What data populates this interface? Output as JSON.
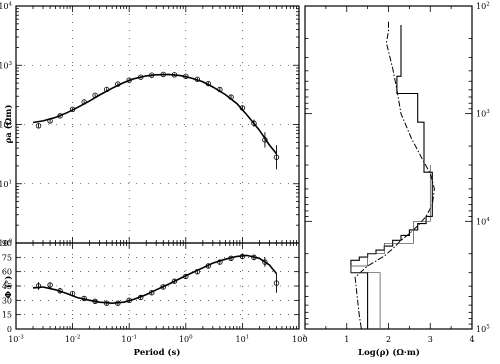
{
  "chart_data": [
    {
      "type": "scatter",
      "panel": "apparent-resistivity",
      "ylabel": "ρa (Ωm)",
      "x_scale": "log",
      "y_scale": "log",
      "xlim": [
        0.001,
        100
      ],
      "ylim": [
        1,
        10000
      ],
      "x_ticks": [
        {
          "base": "10",
          "exp": "-3"
        },
        {
          "base": "10",
          "exp": "-2"
        },
        {
          "base": "10",
          "exp": "-1"
        },
        {
          "base": "10",
          "exp": "0"
        },
        {
          "base": "10",
          "exp": "1"
        },
        {
          "base": "10",
          "exp": "2"
        }
      ],
      "y_ticks": [
        {
          "base": "10",
          "exp": "0"
        },
        {
          "base": "10",
          "exp": "1"
        },
        {
          "base": "10",
          "exp": "2"
        },
        {
          "base": "10",
          "exp": "3"
        },
        {
          "base": "10",
          "exp": "4"
        }
      ],
      "observed": {
        "x": [
          0.0025,
          0.004,
          0.006,
          0.01,
          0.016,
          0.025,
          0.04,
          0.063,
          0.1,
          0.16,
          0.25,
          0.4,
          0.63,
          1.0,
          1.6,
          2.5,
          4,
          6.3,
          10,
          16,
          25,
          40
        ],
        "y": [
          95,
          115,
          140,
          180,
          240,
          310,
          390,
          480,
          560,
          630,
          680,
          700,
          690,
          650,
          580,
          490,
          390,
          290,
          190,
          105,
          55,
          28
        ],
        "y_err_factor": [
          1.08,
          1.06,
          1.06,
          1.05,
          1.05,
          1.05,
          1.05,
          1.05,
          1.05,
          1.05,
          1.05,
          1.05,
          1.05,
          1.05,
          1.06,
          1.06,
          1.07,
          1.08,
          1.1,
          1.15,
          1.35,
          1.6
        ]
      },
      "model_response": {
        "x": [
          0.002,
          0.003,
          0.005,
          0.008,
          0.012,
          0.02,
          0.03,
          0.05,
          0.08,
          0.12,
          0.2,
          0.3,
          0.5,
          0.8,
          1.2,
          2,
          3,
          5,
          8,
          12,
          20,
          30,
          40
        ],
        "y": [
          108,
          115,
          132,
          158,
          192,
          250,
          315,
          410,
          510,
          590,
          660,
          690,
          700,
          670,
          615,
          525,
          430,
          320,
          225,
          145,
          80,
          45,
          32
        ]
      }
    },
    {
      "type": "scatter",
      "panel": "phase",
      "ylabel": "Φ (°)",
      "xlabel": "Period (s)",
      "x_scale": "log",
      "xlim": [
        0.001,
        100
      ],
      "ylim": [
        0,
        90
      ],
      "y_ticks": [
        "0",
        "15",
        "30",
        "45",
        "60",
        "75",
        "90"
      ],
      "x_ticks": [
        {
          "base": "10",
          "exp": "-3"
        },
        {
          "base": "10",
          "exp": "-2"
        },
        {
          "base": "10",
          "exp": "-1"
        },
        {
          "base": "10",
          "exp": "0"
        },
        {
          "base": "10",
          "exp": "1"
        },
        {
          "base": "10",
          "exp": "2"
        }
      ],
      "observed": {
        "x": [
          0.0025,
          0.004,
          0.006,
          0.01,
          0.016,
          0.025,
          0.04,
          0.063,
          0.1,
          0.16,
          0.25,
          0.4,
          0.63,
          1.0,
          1.6,
          2.5,
          4,
          6.3,
          10,
          16,
          25,
          40
        ],
        "y": [
          45,
          46,
          40,
          37,
          32,
          29,
          27,
          27,
          30,
          33,
          38,
          44,
          50,
          55,
          60,
          66,
          70,
          74,
          76,
          75,
          70,
          48
        ],
        "y_err": [
          4,
          3,
          3,
          2,
          2,
          2,
          2,
          2,
          2,
          2,
          2,
          2,
          2,
          2,
          2,
          2,
          2,
          2,
          3,
          3,
          5,
          10
        ]
      },
      "model_response": {
        "x": [
          0.002,
          0.003,
          0.005,
          0.008,
          0.012,
          0.02,
          0.03,
          0.05,
          0.08,
          0.12,
          0.2,
          0.3,
          0.5,
          0.8,
          1.2,
          2,
          3,
          5,
          8,
          12,
          20,
          30,
          40
        ],
        "y": [
          43,
          44,
          41,
          37,
          33,
          30,
          28,
          27,
          28,
          31,
          36,
          41,
          47,
          53,
          58,
          64,
          69,
          73,
          76,
          77,
          74,
          67,
          58
        ]
      }
    },
    {
      "type": "line",
      "panel": "resistivity-depth-model",
      "xlabel": "Log(ρ) (Ω·m)",
      "xlim": [
        0,
        4
      ],
      "x_ticks": [
        "0",
        "1",
        "2",
        "3",
        "4"
      ],
      "y_scale": "log",
      "y_inverted": true,
      "ylim": [
        100,
        100000
      ],
      "y_ticks": [
        {
          "base": "10",
          "exp": "2"
        },
        {
          "base": "10",
          "exp": "3"
        },
        {
          "base": "10",
          "exp": "4"
        },
        {
          "base": "10",
          "exp": "5"
        }
      ],
      "series": [
        {
          "style": "dash-dot",
          "comment_free_points": true,
          "x": [
            2.0,
            2.0,
            1.95,
            2.1,
            2.2,
            2.3,
            2.55,
            2.8,
            3.0,
            3.1,
            3.05,
            2.9,
            2.7,
            2.5,
            2.3,
            2.1,
            1.9,
            1.5,
            1.2,
            1.25,
            1.3,
            1.35
          ],
          "depth": [
            140,
            170,
            220,
            380,
            600,
            1000,
            1700,
            2600,
            3600,
            5000,
            7000,
            9000,
            11000,
            13000,
            15000,
            18000,
            21000,
            26000,
            33000,
            50000,
            75000,
            100000
          ]
        },
        {
          "style": "solid",
          "x": [
            2.3,
            2.3,
            2.2,
            2.2,
            2.7,
            2.7,
            2.85,
            2.85,
            3.05,
            3.05,
            2.9,
            2.9,
            2.7,
            2.7,
            2.5,
            2.5,
            2.3,
            2.3,
            2.1,
            2.1,
            1.9,
            1.9,
            1.7,
            1.7,
            1.5,
            1.5,
            1.3,
            1.3,
            1.1,
            1.1,
            1.5,
            1.5,
            0.0
          ],
          "depth": [
            150,
            450,
            450,
            650,
            650,
            1200,
            1200,
            3500,
            3500,
            9000,
            9000,
            10500,
            10500,
            12000,
            12000,
            13500,
            13500,
            15000,
            15000,
            17000,
            17000,
            18500,
            18500,
            20000,
            20000,
            21500,
            21500,
            23000,
            23000,
            30000,
            30000,
            100000,
            100000
          ]
        },
        {
          "style": "thin",
          "x": [
            3.0,
            3.0,
            2.6,
            2.6,
            1.9,
            1.9,
            1.5,
            1.5,
            1.1,
            1.1,
            1.8,
            1.8
          ],
          "depth": [
            3000,
            10000,
            10000,
            16000,
            16000,
            20000,
            20000,
            26000,
            26000,
            30000,
            30000,
            100000
          ]
        }
      ]
    }
  ]
}
